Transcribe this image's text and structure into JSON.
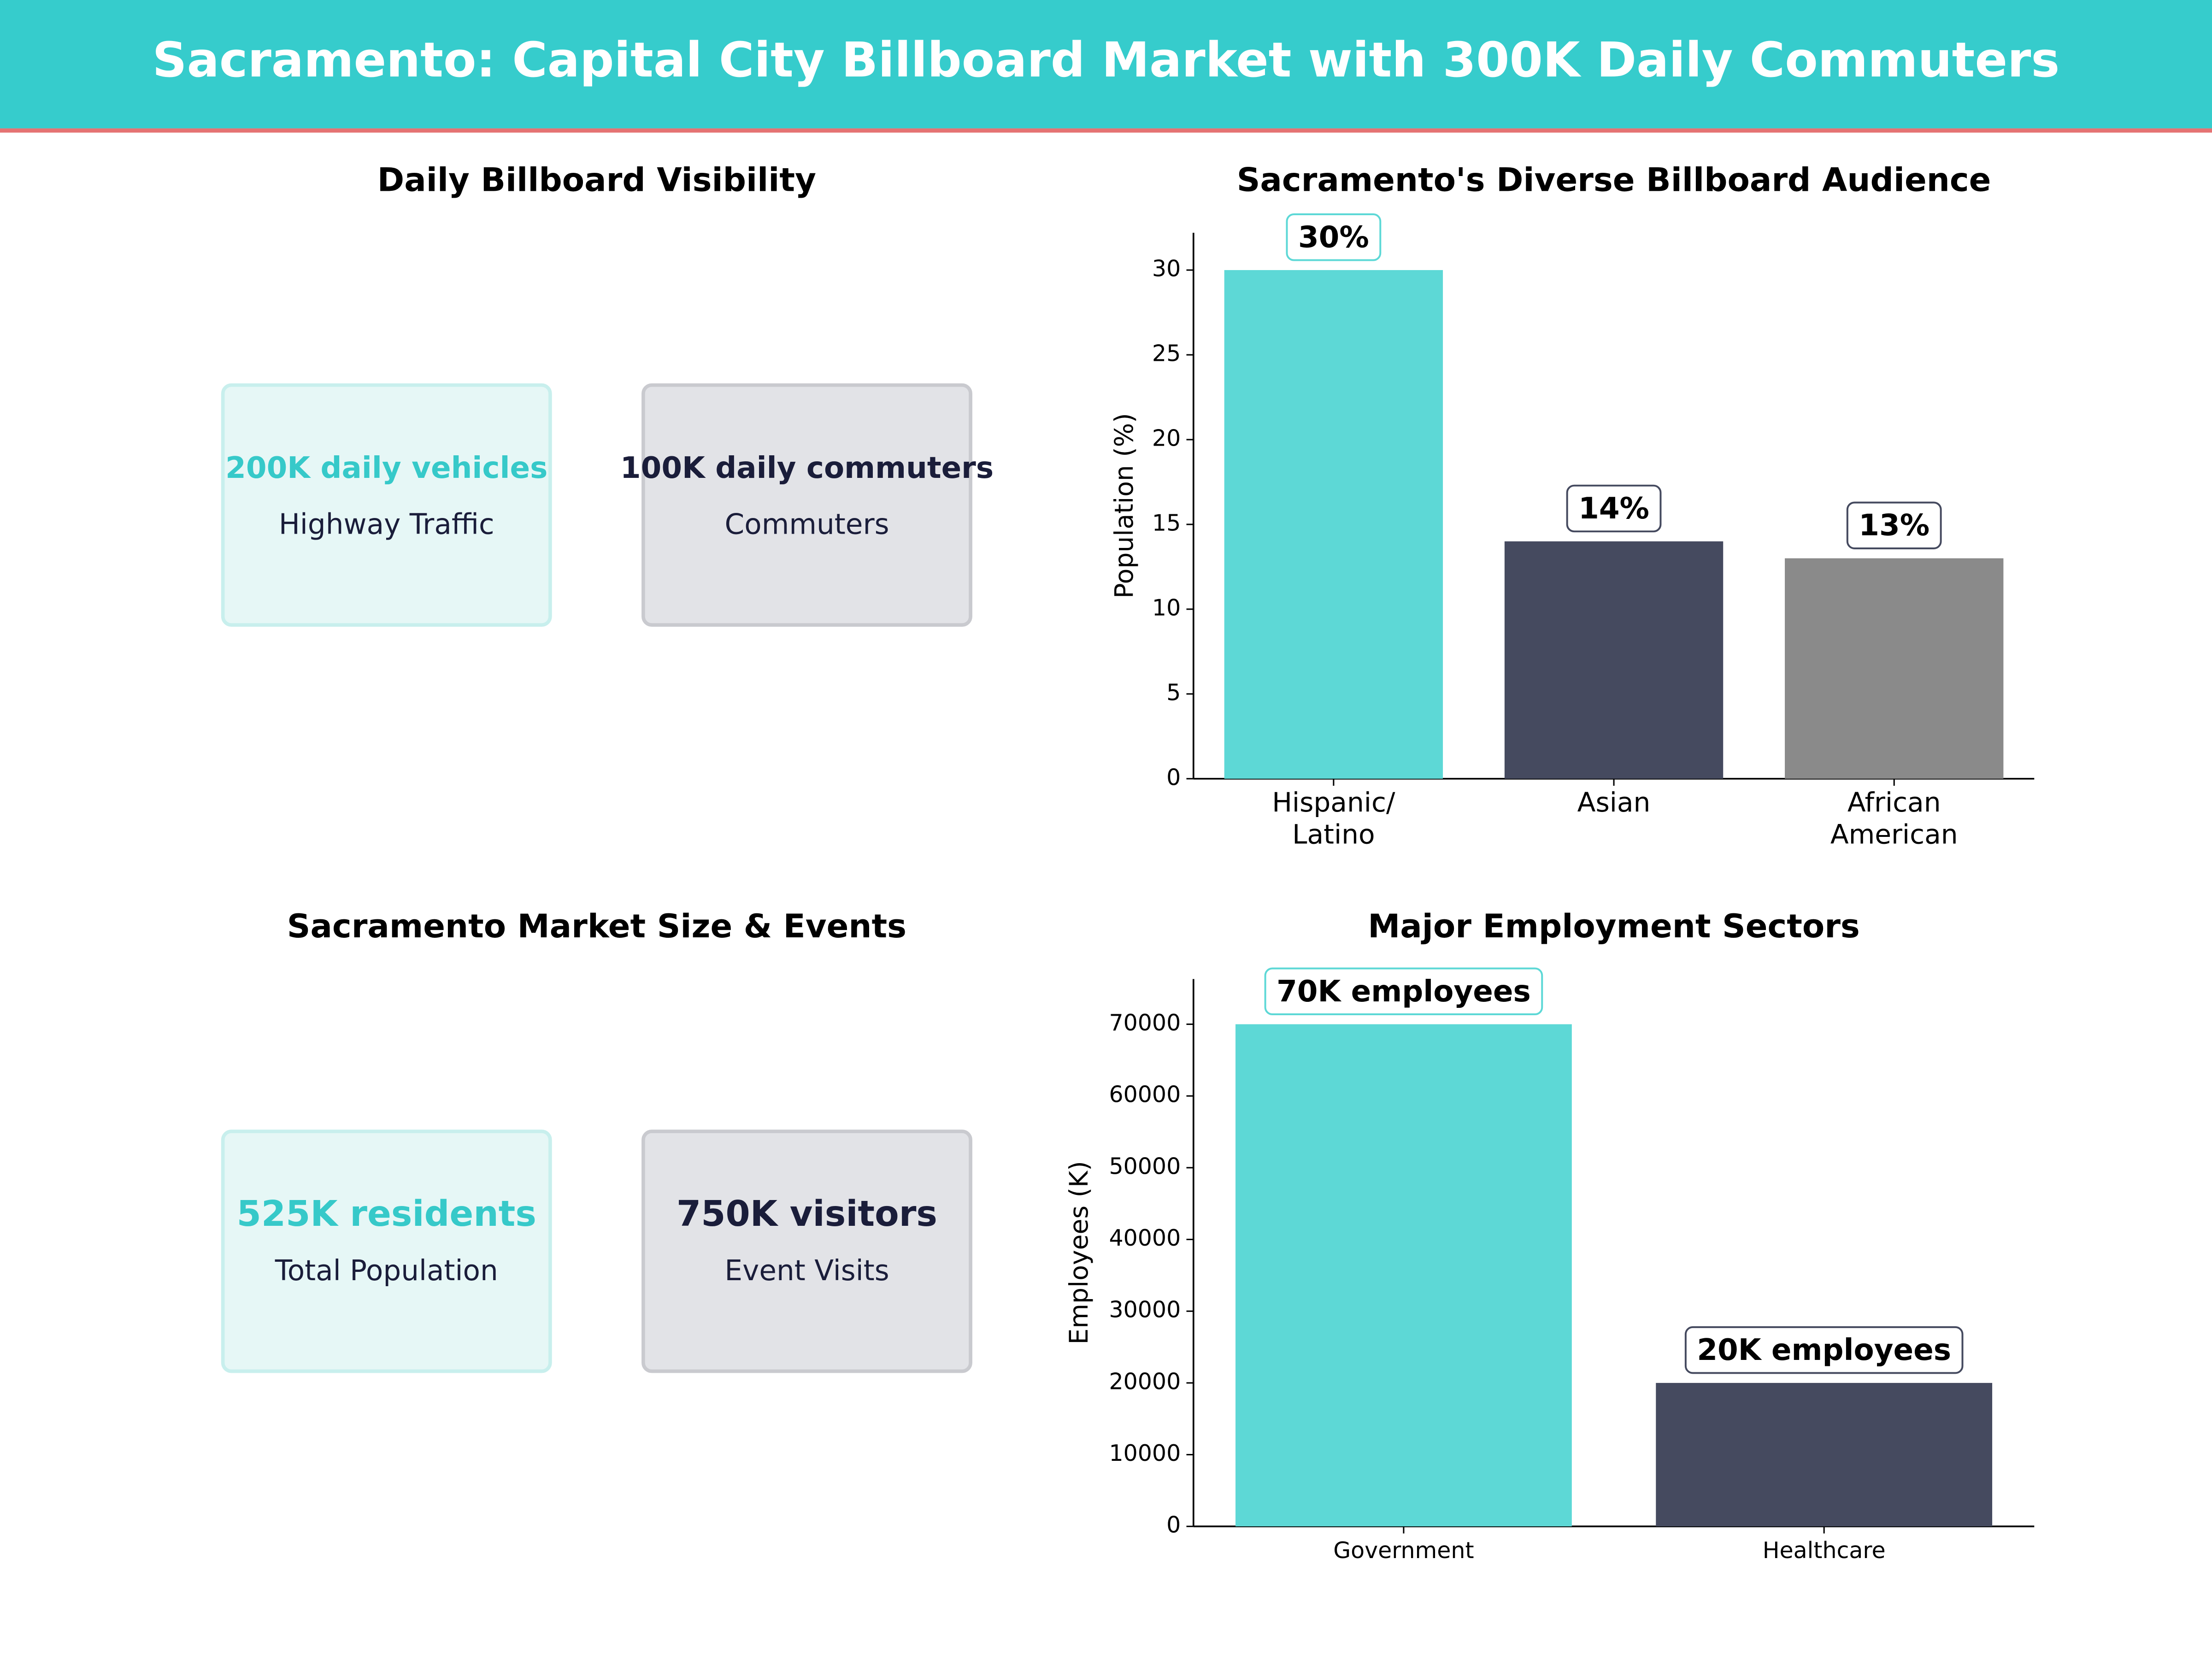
{
  "title": "Sacramento: Capital City Billboard Market with 300K Daily Commuters",
  "kpi_panels": [
    {
      "title": "Daily Billboard Visibility",
      "cards": [
        {
          "value": "200K daily vehicles",
          "label": "Highway Traffic"
        },
        {
          "value": "100K daily commuters",
          "label": "Commuters"
        }
      ]
    },
    {
      "title": "Sacramento Market Size & Events",
      "cards": [
        {
          "value": "525K residents",
          "label": "Total Population"
        },
        {
          "value": "750K visitors",
          "label": "Event Visits"
        }
      ]
    }
  ],
  "chart_data": [
    {
      "type": "bar",
      "title": "Sacramento's Diverse Billboard Audience",
      "categories": [
        "Hispanic/\nLatino",
        "Asian",
        "African\nAmerican"
      ],
      "values": [
        30,
        14,
        13
      ],
      "value_labels": [
        "30%",
        "14%",
        "13%"
      ],
      "colors": [
        "#5dd8d6",
        "#454a5f",
        "#8a8a8a"
      ],
      "ylabel": "Population (%)",
      "ylim": [
        0,
        32.2
      ],
      "yticks": [
        0,
        5,
        10,
        15,
        20,
        25,
        30
      ]
    },
    {
      "type": "bar",
      "title": "Major Employment Sectors",
      "categories": [
        "Government",
        "Healthcare"
      ],
      "values": [
        70000,
        20000
      ],
      "value_labels": [
        "70K employees",
        "20K employees"
      ],
      "colors": [
        "#5dd8d6",
        "#454a5f"
      ],
      "ylabel": "Employees (K)",
      "ylim": [
        0,
        76300
      ],
      "yticks": [
        0,
        10000,
        20000,
        30000,
        40000,
        50000,
        60000,
        70000
      ]
    }
  ]
}
